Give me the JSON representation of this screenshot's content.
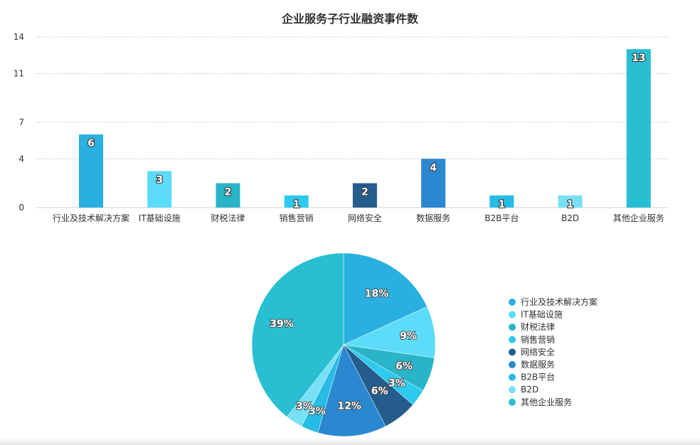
{
  "chart_data": [
    {
      "type": "bar",
      "title": "企业服务子行业融资事件数",
      "xlabel": "",
      "ylabel": "",
      "ylim": [
        0,
        14
      ],
      "y_ticks": [
        "0",
        "4",
        "7",
        "11",
        "14"
      ],
      "grid": true,
      "categories": [
        "行业及技术解决方案",
        "IT基础设施",
        "财税法律",
        "销售营销",
        "网络安全",
        "数据服务",
        "B2B平台",
        "B2D",
        "其他企业服务"
      ],
      "values": [
        6,
        3,
        2,
        1,
        2,
        4,
        1,
        1,
        13
      ],
      "colors": [
        "#2ab0e0",
        "#5cdcf8",
        "#2ab4c8",
        "#2ecaee",
        "#245c8c",
        "#2a88d0",
        "#26bce6",
        "#78e0f4",
        "#28bfd2"
      ]
    },
    {
      "type": "pie",
      "categories": [
        "行业及技术解决方案",
        "IT基础设施",
        "财税法律",
        "销售营销",
        "网络安全",
        "数据服务",
        "B2B平台",
        "B2D",
        "其他企业服务"
      ],
      "values": [
        18,
        9,
        6,
        3,
        6,
        12,
        3,
        3,
        39
      ],
      "labels": [
        "18%",
        "9%",
        "6%",
        "3%",
        "6%",
        "12%",
        "3%",
        "3%",
        "39%"
      ],
      "colors": [
        "#2ab0e0",
        "#5cdcf8",
        "#2ab4c8",
        "#2ecaee",
        "#245c8c",
        "#2a88d0",
        "#26bce6",
        "#78e0f4",
        "#28bfd2"
      ],
      "legend_position": "right"
    }
  ]
}
